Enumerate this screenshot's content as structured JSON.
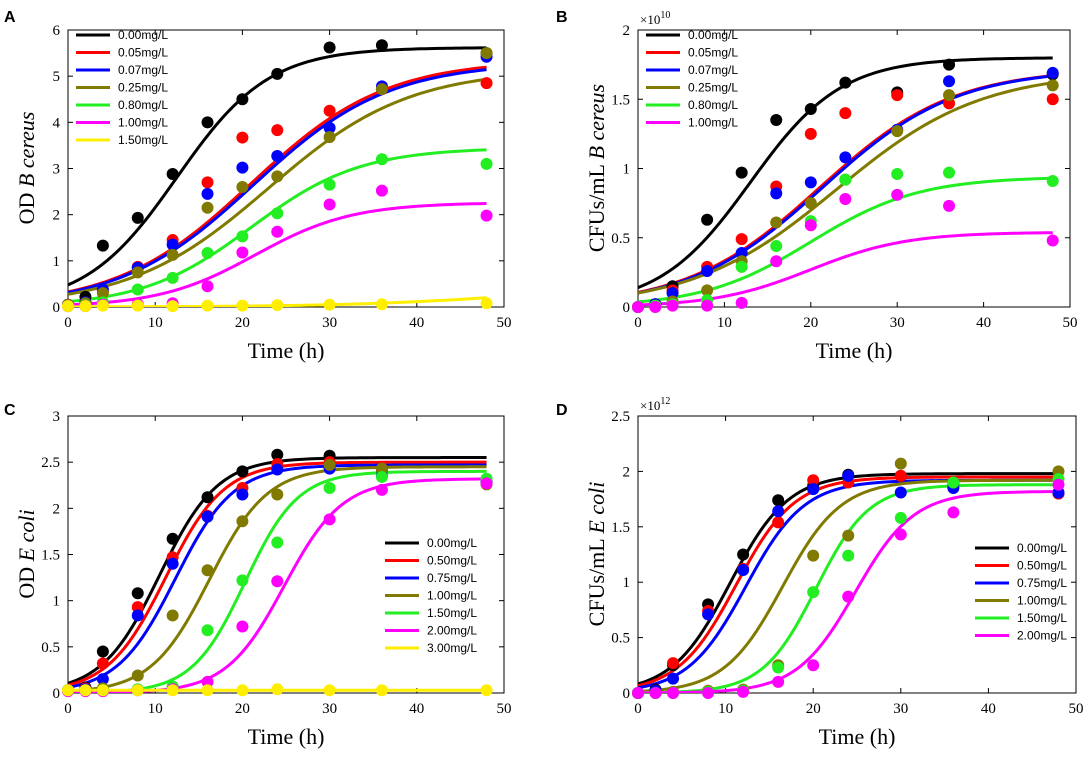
{
  "colors": {
    "0.00": "#000000",
    "red": "#ff0000",
    "blue": "#0000ff",
    "olive": "#807a00",
    "green": "#22ee22",
    "magenta": "#ff00ff",
    "yellow": "#ffee00"
  },
  "chart_data": [
    {
      "type": "line",
      "panel": "A",
      "xlabel": "Time (h)",
      "ylabel_prefix": "OD",
      "ylabel_species": "B cereus",
      "xlim": [
        0,
        50
      ],
      "ylim": [
        0,
        6
      ],
      "xticks": [
        0,
        10,
        20,
        30,
        40,
        50
      ],
      "yticks": [
        0,
        1,
        2,
        3,
        4,
        5,
        6
      ],
      "ytick_labels": [
        "0",
        "1",
        "2",
        "3",
        "4",
        "5",
        "6"
      ],
      "exponent": "",
      "legend_position": "top-left",
      "series": [
        {
          "name": "0.00mg/L",
          "color": "#000000",
          "fit": {
            "K": 5.62,
            "r": 0.19,
            "t0": 12.5
          },
          "x": [
            0,
            2,
            4,
            8,
            12,
            16,
            20,
            24,
            30,
            36,
            48
          ],
          "y": [
            0.05,
            0.22,
            1.33,
            1.93,
            2.88,
            4.0,
            4.5,
            5.05,
            5.62,
            5.67,
            5.5
          ]
        },
        {
          "name": "0.05mg/L",
          "color": "#ff0000",
          "fit": {
            "K": 5.35,
            "r": 0.13,
            "t0": 21.0
          },
          "x": [
            0,
            2,
            4,
            8,
            12,
            16,
            20,
            24,
            30,
            36,
            48
          ],
          "y": [
            0.05,
            0.1,
            0.35,
            0.87,
            1.45,
            2.7,
            3.67,
            3.83,
            4.25,
            4.72,
            4.85
          ]
        },
        {
          "name": "0.07mg/L",
          "color": "#0000ff",
          "fit": {
            "K": 5.3,
            "r": 0.13,
            "t0": 21.3
          },
          "x": [
            0,
            2,
            4,
            8,
            12,
            16,
            20,
            24,
            30,
            36,
            48
          ],
          "y": [
            0.05,
            0.1,
            0.38,
            0.85,
            1.35,
            2.45,
            3.02,
            3.27,
            3.88,
            4.78,
            5.42
          ]
        },
        {
          "name": "0.25mg/L",
          "color": "#807a00",
          "fit": {
            "K": 5.15,
            "r": 0.125,
            "t0": 23.0
          },
          "x": [
            0,
            2,
            4,
            8,
            12,
            16,
            20,
            24,
            30,
            36,
            48
          ],
          "y": [
            0.05,
            0.08,
            0.3,
            0.75,
            1.13,
            2.15,
            2.6,
            2.83,
            3.68,
            4.72,
            5.5
          ]
        },
        {
          "name": "0.80mg/L",
          "color": "#22ee22",
          "fit": {
            "K": 3.45,
            "r": 0.16,
            "t0": 21.0
          },
          "x": [
            0,
            2,
            4,
            8,
            12,
            16,
            20,
            24,
            30,
            36,
            48
          ],
          "y": [
            0.02,
            0.03,
            0.1,
            0.38,
            0.63,
            1.17,
            1.53,
            2.03,
            2.65,
            3.2,
            3.1
          ]
        },
        {
          "name": "1.00mg/L",
          "color": "#ff00ff",
          "fit": {
            "K": 2.26,
            "r": 0.18,
            "t0": 21.5
          },
          "x": [
            0,
            2,
            4,
            8,
            12,
            16,
            20,
            24,
            30,
            36,
            48
          ],
          "y": [
            0.02,
            0.02,
            0.05,
            0.06,
            0.08,
            0.45,
            1.18,
            1.63,
            2.22,
            2.52,
            1.98
          ]
        },
        {
          "name": "1.50mg/L",
          "color": "#ffee00",
          "fit": {
            "K": 0.5,
            "r": 0.1,
            "t0": 52.0
          },
          "x": [
            0,
            2,
            4,
            8,
            12,
            16,
            20,
            24,
            30,
            36,
            48
          ],
          "y": [
            0.02,
            0.02,
            0.03,
            0.03,
            0.02,
            0.03,
            0.03,
            0.04,
            0.05,
            0.06,
            0.08
          ]
        }
      ]
    },
    {
      "type": "line",
      "panel": "B",
      "xlabel": "Time (h)",
      "ylabel_prefix": "CFUs/mL",
      "ylabel_species": "B cereus",
      "xlim": [
        0,
        50
      ],
      "ylim": [
        0,
        2
      ],
      "xticks": [
        0,
        10,
        20,
        30,
        40,
        50
      ],
      "yticks": [
        0,
        0.5,
        1,
        1.5,
        2
      ],
      "ytick_labels": [
        "0",
        "0.5",
        "1",
        "1.5",
        "2"
      ],
      "exponent": "×10",
      "exponent_power": "10",
      "legend_position": "top-left",
      "series": [
        {
          "name": "0.00mg/L",
          "color": "#000000",
          "fit": {
            "K": 1.8,
            "r": 0.19,
            "t0": 13.0
          },
          "x": [
            0,
            2,
            4,
            8,
            12,
            16,
            20,
            24,
            30,
            36,
            48
          ],
          "y": [
            0.0,
            0.02,
            0.15,
            0.63,
            0.97,
            1.35,
            1.43,
            1.62,
            1.55,
            1.75,
            1.68
          ]
        },
        {
          "name": "0.05mg/L",
          "color": "#ff0000",
          "fit": {
            "K": 1.72,
            "r": 0.13,
            "t0": 21.0
          },
          "x": [
            0,
            2,
            4,
            8,
            12,
            16,
            20,
            24,
            30,
            36,
            48
          ],
          "y": [
            0.0,
            0.02,
            0.12,
            0.29,
            0.49,
            0.87,
            1.25,
            1.4,
            1.53,
            1.47,
            1.5
          ]
        },
        {
          "name": "0.07mg/L",
          "color": "#0000ff",
          "fit": {
            "K": 1.72,
            "r": 0.13,
            "t0": 21.3
          },
          "x": [
            0,
            2,
            4,
            8,
            12,
            16,
            20,
            24,
            30,
            36,
            48
          ],
          "y": [
            0.0,
            0.02,
            0.1,
            0.26,
            0.39,
            0.82,
            0.9,
            1.08,
            1.28,
            1.63,
            1.69
          ]
        },
        {
          "name": "0.25mg/L",
          "color": "#807a00",
          "fit": {
            "K": 1.7,
            "r": 0.12,
            "t0": 23.0
          },
          "x": [
            0,
            2,
            4,
            8,
            12,
            16,
            20,
            24,
            30,
            36,
            48
          ],
          "y": [
            0.0,
            0.01,
            0.04,
            0.12,
            0.33,
            0.61,
            0.75,
            0.92,
            1.27,
            1.53,
            1.6
          ]
        },
        {
          "name": "0.80mg/L",
          "color": "#22ee22",
          "fit": {
            "K": 0.94,
            "r": 0.16,
            "t0": 20.0
          },
          "x": [
            0,
            2,
            4,
            8,
            12,
            16,
            20,
            24,
            30,
            36,
            48
          ],
          "y": [
            0.0,
            0.01,
            0.02,
            0.05,
            0.29,
            0.44,
            0.62,
            0.92,
            0.96,
            0.97,
            0.91
          ]
        },
        {
          "name": "1.00mg/L",
          "color": "#ff00ff",
          "fit": {
            "K": 0.54,
            "r": 0.18,
            "t0": 20.0
          },
          "x": [
            0,
            2,
            4,
            8,
            12,
            16,
            20,
            24,
            30,
            36,
            48
          ],
          "y": [
            0.0,
            0.0,
            0.01,
            0.01,
            0.03,
            0.33,
            0.59,
            0.78,
            0.81,
            0.73,
            0.48
          ]
        }
      ]
    },
    {
      "type": "line",
      "panel": "C",
      "xlabel": "Time (h)",
      "ylabel_prefix": "OD",
      "ylabel_species": "E coli",
      "xlim": [
        0,
        50
      ],
      "ylim": [
        0,
        3
      ],
      "xticks": [
        0,
        10,
        20,
        30,
        40,
        50
      ],
      "yticks": [
        0,
        0.5,
        1,
        1.5,
        2,
        2.5,
        3
      ],
      "ytick_labels": [
        "0",
        "0.5",
        "1",
        "1.5",
        "2",
        "2.5",
        "3"
      ],
      "exponent": "",
      "legend_position": "right",
      "series": [
        {
          "name": "0.00mg/L",
          "color": "#000000",
          "fit": {
            "K": 2.55,
            "r": 0.3,
            "t0": 10.5
          },
          "x": [
            0,
            2,
            4,
            8,
            12,
            16,
            20,
            24,
            30,
            36,
            48
          ],
          "y": [
            0.03,
            0.06,
            0.45,
            1.08,
            1.67,
            2.12,
            2.4,
            2.58,
            2.57,
            2.42,
            2.28
          ]
        },
        {
          "name": "0.50mg/L",
          "color": "#ff0000",
          "fit": {
            "K": 2.5,
            "r": 0.3,
            "t0": 11.2
          },
          "x": [
            0,
            2,
            4,
            8,
            12,
            16,
            20,
            24,
            30,
            36,
            48
          ],
          "y": [
            0.03,
            0.05,
            0.32,
            0.93,
            1.47,
            1.92,
            2.22,
            2.48,
            2.5,
            2.43,
            2.27
          ]
        },
        {
          "name": "0.75mg/L",
          "color": "#0000ff",
          "fit": {
            "K": 2.47,
            "r": 0.3,
            "t0": 12.3
          },
          "x": [
            0,
            2,
            4,
            8,
            12,
            16,
            20,
            24,
            30,
            36,
            48
          ],
          "y": [
            0.03,
            0.04,
            0.15,
            0.84,
            1.4,
            1.91,
            2.15,
            2.42,
            2.43,
            2.35,
            2.28
          ]
        },
        {
          "name": "1.00mg/L",
          "color": "#807a00",
          "fit": {
            "K": 2.45,
            "r": 0.3,
            "t0": 16.2
          },
          "x": [
            0,
            2,
            4,
            8,
            12,
            16,
            20,
            24,
            30,
            36,
            48
          ],
          "y": [
            0.03,
            0.03,
            0.05,
            0.19,
            0.84,
            1.33,
            1.86,
            2.15,
            2.47,
            2.43,
            2.26
          ]
        },
        {
          "name": "1.50mg/L",
          "color": "#22ee22",
          "fit": {
            "K": 2.4,
            "r": 0.33,
            "t0": 20.3
          },
          "x": [
            0,
            2,
            4,
            8,
            12,
            16,
            20,
            24,
            30,
            36,
            48
          ],
          "y": [
            0.03,
            0.03,
            0.03,
            0.04,
            0.07,
            0.68,
            1.22,
            1.63,
            2.22,
            2.34,
            2.32
          ]
        },
        {
          "name": "2.00mg/L",
          "color": "#ff00ff",
          "fit": {
            "K": 2.32,
            "r": 0.3,
            "t0": 24.8
          },
          "x": [
            0,
            2,
            4,
            8,
            12,
            16,
            20,
            24,
            30,
            36,
            48
          ],
          "y": [
            0.02,
            0.02,
            0.02,
            0.03,
            0.04,
            0.12,
            0.72,
            1.21,
            1.88,
            2.2,
            2.27
          ]
        },
        {
          "name": "3.00mg/L",
          "color": "#ffee00",
          "fit": {
            "K": 0.03,
            "r": 0.0,
            "t0": 0
          },
          "x": [
            0,
            2,
            4,
            8,
            12,
            16,
            20,
            24,
            30,
            36,
            48
          ],
          "y": [
            0.03,
            0.03,
            0.03,
            0.03,
            0.03,
            0.03,
            0.03,
            0.04,
            0.03,
            0.03,
            0.03
          ]
        }
      ]
    },
    {
      "type": "line",
      "panel": "D",
      "xlabel": "Time (h)",
      "ylabel_prefix": "CFUs/mL",
      "ylabel_species": "E coli",
      "xlim": [
        0,
        50
      ],
      "ylim": [
        0,
        2.5
      ],
      "xticks": [
        0,
        10,
        20,
        30,
        40,
        50
      ],
      "yticks": [
        0,
        0.5,
        1,
        1.5,
        2,
        2.5
      ],
      "ytick_labels": [
        "0",
        "0.5",
        "1",
        "1.5",
        "2",
        "2.5"
      ],
      "exponent": "×10",
      "exponent_power": "12",
      "legend_position": "right",
      "series": [
        {
          "name": "0.00mg/L",
          "color": "#000000",
          "fit": {
            "K": 1.98,
            "r": 0.3,
            "t0": 10.5
          },
          "x": [
            0,
            2,
            4,
            8,
            12,
            16,
            20,
            24,
            30,
            36,
            48
          ],
          "y": [
            0.0,
            0.03,
            0.25,
            0.8,
            1.25,
            1.74,
            1.87,
            1.97,
            1.96,
            1.89,
            1.8
          ]
        },
        {
          "name": "0.50mg/L",
          "color": "#ff0000",
          "fit": {
            "K": 1.95,
            "r": 0.3,
            "t0": 11.2
          },
          "x": [
            0,
            2,
            4,
            8,
            12,
            16,
            20,
            24,
            30,
            36,
            48
          ],
          "y": [
            0.0,
            0.02,
            0.27,
            0.74,
            1.12,
            1.54,
            1.92,
            1.9,
            1.96,
            1.9,
            1.8
          ]
        },
        {
          "name": "0.75mg/L",
          "color": "#0000ff",
          "fit": {
            "K": 1.92,
            "r": 0.3,
            "t0": 12.3
          },
          "x": [
            0,
            2,
            4,
            8,
            12,
            16,
            20,
            24,
            30,
            36,
            48
          ],
          "y": [
            0.0,
            0.02,
            0.13,
            0.71,
            1.11,
            1.64,
            1.84,
            1.96,
            1.81,
            1.85,
            1.81
          ]
        },
        {
          "name": "1.00mg/L",
          "color": "#807a00",
          "fit": {
            "K": 1.92,
            "r": 0.3,
            "t0": 16.5
          },
          "x": [
            0,
            2,
            4,
            8,
            12,
            16,
            20,
            24,
            30,
            36,
            48
          ],
          "y": [
            0.0,
            0.0,
            0.01,
            0.02,
            0.03,
            0.25,
            1.24,
            1.42,
            2.07,
            1.9,
            2.0
          ]
        },
        {
          "name": "1.50mg/L",
          "color": "#22ee22",
          "fit": {
            "K": 1.88,
            "r": 0.33,
            "t0": 20.3
          },
          "x": [
            0,
            2,
            4,
            8,
            12,
            16,
            20,
            24,
            30,
            36,
            48
          ],
          "y": [
            0.0,
            0.0,
            0.0,
            0.01,
            0.02,
            0.23,
            0.91,
            1.24,
            1.58,
            1.9,
            1.93
          ]
        },
        {
          "name": "2.00mg/L",
          "color": "#ff00ff",
          "fit": {
            "K": 1.82,
            "r": 0.3,
            "t0": 24.8
          },
          "x": [
            0,
            2,
            4,
            8,
            12,
            16,
            20,
            24,
            30,
            36,
            48
          ],
          "y": [
            0.0,
            0.0,
            0.0,
            0.0,
            0.01,
            0.1,
            0.25,
            0.87,
            1.43,
            1.63,
            1.88
          ]
        }
      ]
    }
  ]
}
